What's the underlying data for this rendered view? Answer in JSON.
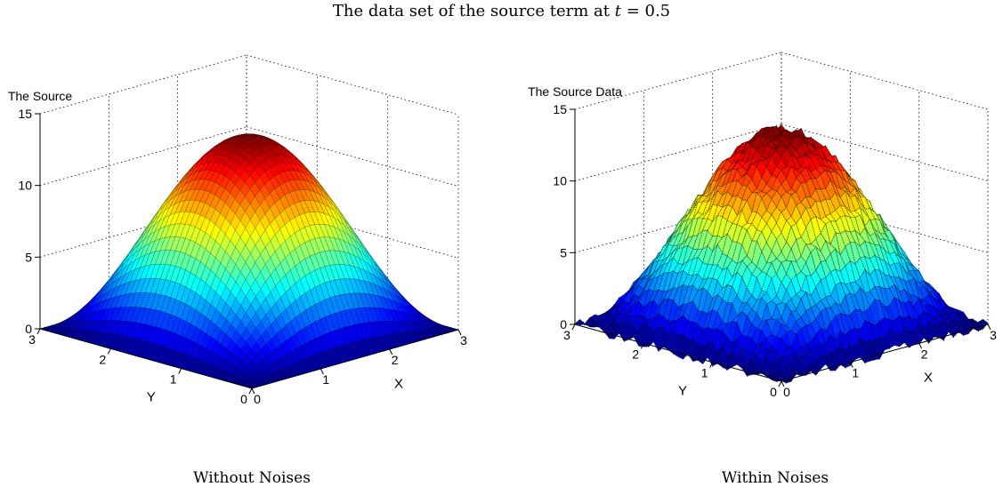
{
  "figure": {
    "title_prefix": "The data set of the source term at ",
    "title_var": "t",
    "title_suffix": " = 0.5"
  },
  "chart_data": [
    {
      "type": "surface",
      "title": "The Source",
      "caption": "Without Noises",
      "xlabel": "X",
      "ylabel": "Y",
      "xlim": [
        0,
        3
      ],
      "ylim": [
        0,
        3
      ],
      "zlim": [
        0,
        15
      ],
      "xticks": [
        "0",
        "1",
        "2",
        "3"
      ],
      "yticks": [
        "0",
        "1",
        "2",
        "3"
      ],
      "zticks": [
        "0",
        "5",
        "10",
        "15"
      ],
      "peak_value": 13.5,
      "function": "13.5 * sin(pi*x/3) * sin(pi*y/3)",
      "noise": 0,
      "colormap": "jet",
      "grid": true
    },
    {
      "type": "surface",
      "title": "The Source Data",
      "caption": "Within Noises",
      "xlabel": "X",
      "ylabel": "Y",
      "xlim": [
        0,
        3
      ],
      "ylim": [
        0,
        3
      ],
      "zlim": [
        0,
        15
      ],
      "xticks": [
        "0",
        "1",
        "2",
        "3"
      ],
      "yticks": [
        "0",
        "1",
        "2",
        "3"
      ],
      "zticks": [
        "0",
        "5",
        "10",
        "15"
      ],
      "peak_value": 13.5,
      "function": "13.5 * sin(pi*x/3) * sin(pi*y/3) + noise",
      "noise": 0.35,
      "colormap": "jet",
      "grid": true
    }
  ]
}
